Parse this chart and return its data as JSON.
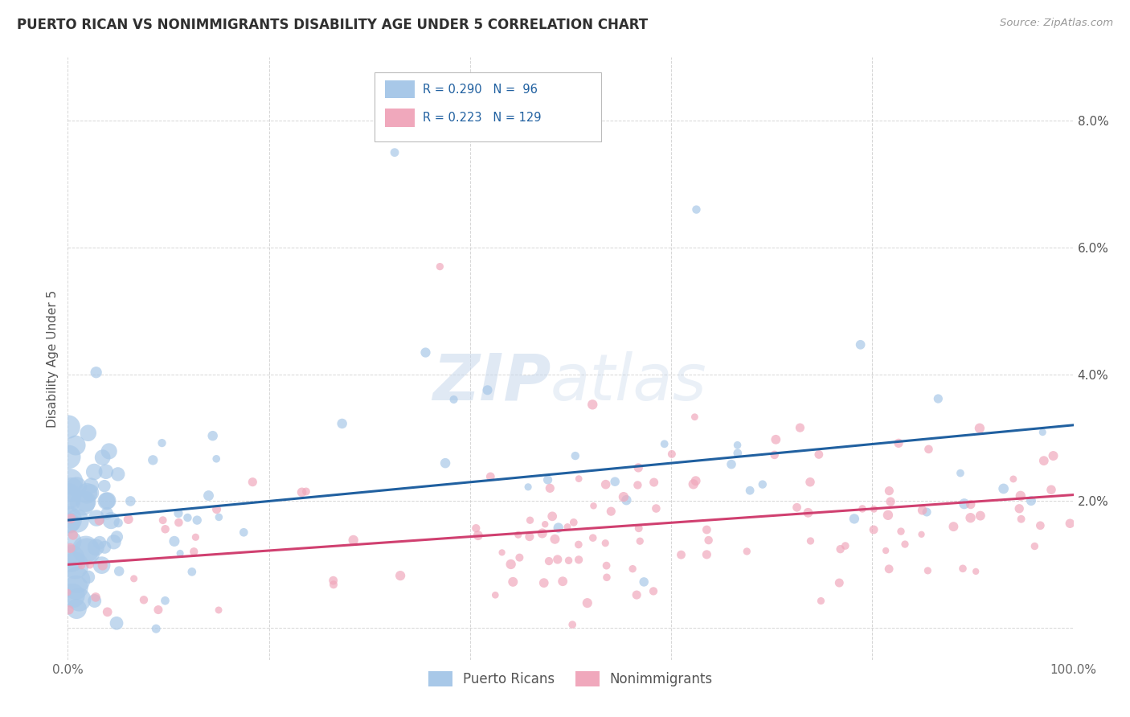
{
  "title": "PUERTO RICAN VS NONIMMIGRANTS DISABILITY AGE UNDER 5 CORRELATION CHART",
  "source": "Source: ZipAtlas.com",
  "ylabel": "Disability Age Under 5",
  "xlim": [
    0,
    1.0
  ],
  "ylim": [
    -0.005,
    0.09
  ],
  "yticks": [
    0.0,
    0.02,
    0.04,
    0.06,
    0.08
  ],
  "ytick_labels": [
    "",
    "2.0%",
    "4.0%",
    "6.0%",
    "8.0%"
  ],
  "xticks": [
    0.0,
    0.2,
    0.4,
    0.6,
    0.8,
    1.0
  ],
  "xtick_labels": [
    "0.0%",
    "",
    "",
    "",
    "",
    "100.0%"
  ],
  "pr_R": 0.29,
  "pr_N": 96,
  "ni_R": 0.223,
  "ni_N": 129,
  "blue_color": "#a8c8e8",
  "pink_color": "#f0a8bc",
  "blue_line_color": "#2060a0",
  "pink_line_color": "#d04070",
  "background_color": "#ffffff",
  "grid_color": "#cccccc",
  "title_color": "#303030",
  "pr_line_x0": 0.0,
  "pr_line_y0": 0.017,
  "pr_line_x1": 1.0,
  "pr_line_y1": 0.032,
  "ni_line_x0": 0.0,
  "ni_line_y0": 0.01,
  "ni_line_x1": 1.0,
  "ni_line_y1": 0.021
}
